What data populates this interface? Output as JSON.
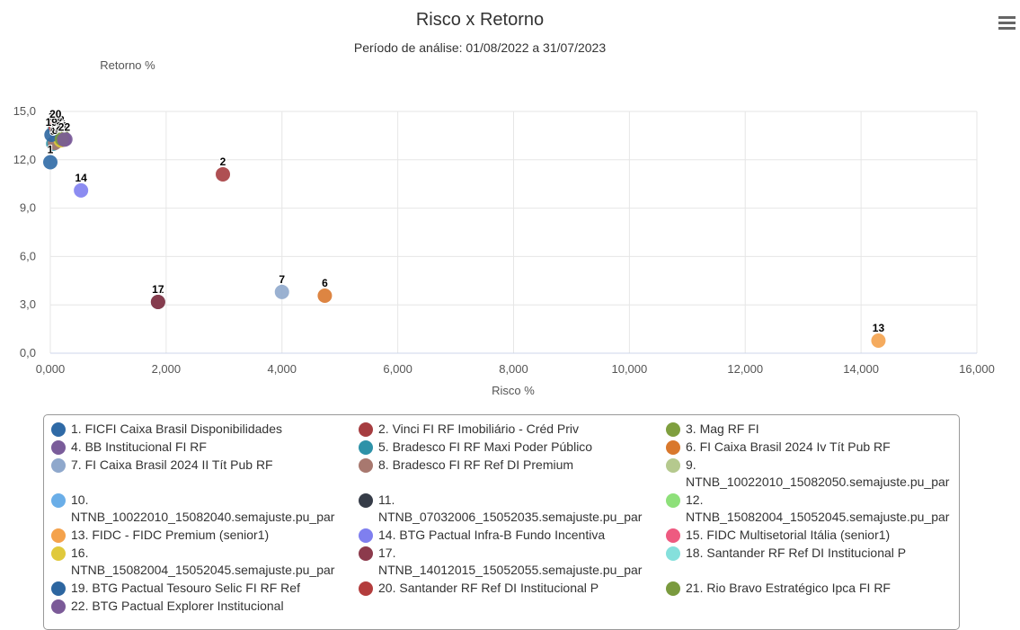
{
  "chart_data": {
    "type": "scatter",
    "title": "Risco x Retorno",
    "subtitle": "Período de análise: 01/08/2022 a 31/07/2023",
    "xlabel": "Risco %",
    "ylabel": "Retorno %",
    "xlim": [
      0,
      16
    ],
    "ylim": [
      0,
      15
    ],
    "xticks": [
      {
        "value": 0,
        "label": "0,000"
      },
      {
        "value": 2,
        "label": "2,000"
      },
      {
        "value": 4,
        "label": "4,000"
      },
      {
        "value": 6,
        "label": "6,000"
      },
      {
        "value": 8,
        "label": "8,000"
      },
      {
        "value": 10,
        "label": "10,000"
      },
      {
        "value": 12,
        "label": "12,000"
      },
      {
        "value": 14,
        "label": "14,000"
      },
      {
        "value": 16,
        "label": "16,000"
      }
    ],
    "yticks": [
      {
        "value": 0,
        "label": "0,0"
      },
      {
        "value": 3,
        "label": "3,0"
      },
      {
        "value": 6,
        "label": "6,0"
      },
      {
        "value": 9,
        "label": "9,0"
      },
      {
        "value": 12,
        "label": "12,0"
      },
      {
        "value": 15,
        "label": "15,0"
      }
    ],
    "grid": true,
    "series": [
      {
        "name": "1. FICFI Caixa Brasil Disponibilidades",
        "color": "#2f6aa6",
        "x": [
          0.0
        ],
        "values": [
          11.85
        ],
        "value_labels": [
          "1"
        ]
      },
      {
        "name": "2. Vinci FI RF Imobiliário - Créd Priv",
        "color": "#a63d40",
        "x": [
          2.98
        ],
        "values": [
          11.1
        ],
        "value_labels": [
          "2"
        ]
      },
      {
        "name": "3. Mag RF FI",
        "color": "#7f9f3f",
        "x": [
          0.22
        ],
        "values": [
          13.4
        ],
        "value_labels": [
          "3"
        ]
      },
      {
        "name": "4. BB Institucional FI RF",
        "color": "#7a5c9a",
        "x": [
          0.26
        ],
        "values": [
          13.27
        ],
        "value_labels": [
          "4"
        ]
      },
      {
        "name": "5. Bradesco FI RF Maxi Poder Público",
        "color": "#2e92a8",
        "x": [
          0.05
        ],
        "values": [
          13.0
        ],
        "value_labels": [
          "5"
        ]
      },
      {
        "name": "6. FI Caixa Brasil 2024 Iv Tít Pub RF",
        "color": "#d9782d",
        "x": [
          4.74
        ],
        "values": [
          3.57
        ],
        "value_labels": [
          "6"
        ]
      },
      {
        "name": "7. FI Caixa Brasil 2024 II Tít Pub RF",
        "color": "#8fa8cc",
        "x": [
          4.0
        ],
        "values": [
          3.8
        ],
        "value_labels": [
          "7"
        ]
      },
      {
        "name": "8. Bradesco FI RF Ref DI Premium",
        "color": "#a8786f",
        "x": [
          0.08
        ],
        "values": [
          13.05
        ],
        "value_labels": [
          "8"
        ]
      },
      {
        "name": "9. NTNB_10022010_15082050.semajuste.pu_par",
        "color": "#b5c98e",
        "x": [
          0.15
        ],
        "values": [
          13.6
        ],
        "value_labels": [
          "9"
        ]
      },
      {
        "name": "10. NTNB_10022010_15082040.semajuste.pu_par",
        "color": "#6aaee8",
        "x": [
          0.12
        ],
        "values": [
          13.5
        ],
        "value_labels": [
          "10"
        ]
      },
      {
        "name": "11. NTNB_07032006_15052035.semajuste.pu_par",
        "color": "#363c48",
        "x": [
          1.86
        ],
        "values": [
          3.18
        ],
        "value_labels": [
          "11"
        ]
      },
      {
        "name": "12. NTNB_15082004_15052045.semajuste.pu_par",
        "color": "#8ee07a",
        "x": [
          0.14
        ],
        "values": [
          13.7
        ],
        "value_labels": [
          "12"
        ]
      },
      {
        "name": "13. FIDC - FIDC Premium (senior1)",
        "color": "#f4a24c",
        "x": [
          14.3
        ],
        "values": [
          0.78
        ],
        "value_labels": [
          "13"
        ]
      },
      {
        "name": "14. BTG Pactual Infra-B Fundo Incentiva",
        "color": "#7f7fef",
        "x": [
          0.53
        ],
        "values": [
          10.1
        ],
        "value_labels": [
          "14"
        ]
      },
      {
        "name": "15. FIDC Multisetorial Itália (senior1)",
        "color": "#ee5a80",
        "x": [
          0.1
        ],
        "values": [
          13.8
        ],
        "value_labels": [
          "15"
        ]
      },
      {
        "name": "16. NTNB_15082004_15052045.semajuste.pu_par",
        "color": "#e0c93c",
        "x": [
          0.18
        ],
        "values": [
          13.2
        ],
        "value_labels": [
          "16"
        ]
      },
      {
        "name": "17. NTNB_14012015_15052055.semajuste.pu_par",
        "color": "#8c3a4c",
        "x": [
          1.86
        ],
        "values": [
          3.18
        ],
        "value_labels": [
          "17"
        ]
      },
      {
        "name": "18. Santander RF Ref DI Institucional P",
        "color": "#85e0dc",
        "x": [
          0.07
        ],
        "values": [
          13.9
        ],
        "value_labels": [
          "18"
        ]
      },
      {
        "name": "19. BTG Pactual Tesouro Selic FI RF Ref",
        "color": "#2d66a0",
        "x": [
          0.02
        ],
        "values": [
          13.55
        ],
        "value_labels": [
          "19"
        ]
      },
      {
        "name": "20. Santander RF Ref DI Institucional P",
        "color": "#b33d3d",
        "x": [
          0.09
        ],
        "values": [
          14.05
        ],
        "value_labels": [
          "20"
        ]
      },
      {
        "name": "21. Rio Bravo Estratégico Ipca FI RF",
        "color": "#7a9a3e",
        "x": [
          0.2
        ],
        "values": [
          13.3
        ],
        "value_labels": [
          "21"
        ]
      },
      {
        "name": "22. BTG Pactual Explorer Institucional",
        "color": "#7b5a98",
        "x": [
          0.24
        ],
        "values": [
          13.25
        ],
        "value_labels": [
          "22"
        ]
      }
    ]
  }
}
